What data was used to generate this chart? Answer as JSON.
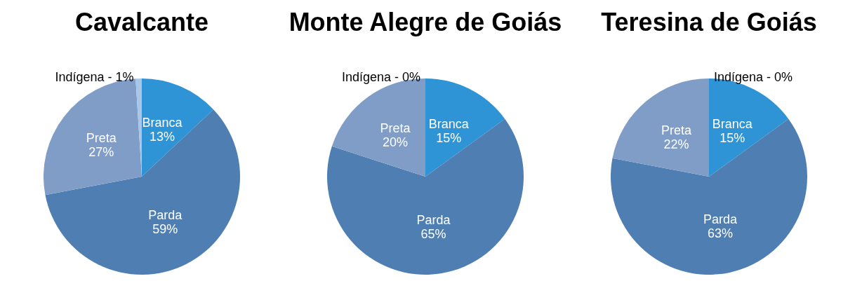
{
  "chart_data": [
    {
      "type": "pie",
      "title": "Cavalcante",
      "categories": [
        "Branca",
        "Parda",
        "Preta",
        "Indígena"
      ],
      "values": [
        13,
        59,
        27,
        1
      ],
      "value_labels": [
        "13%",
        "59%",
        "27%",
        "1%"
      ],
      "colors": [
        "#2e94d6",
        "#4f7fb2",
        "#7f9dc6",
        "#a9c6e8"
      ],
      "legend": false
    },
    {
      "type": "pie",
      "title": "Monte Alegre de Goiás",
      "categories": [
        "Branca",
        "Parda",
        "Preta",
        "Indígena"
      ],
      "values": [
        15,
        65,
        20,
        0
      ],
      "value_labels": [
        "15%",
        "65%",
        "20%",
        "- 0%"
      ],
      "colors": [
        "#2e94d6",
        "#4f7fb2",
        "#7f9dc6",
        "#a9c6e8"
      ],
      "legend": false
    },
    {
      "type": "pie",
      "title": "Teresina de Goiás",
      "categories": [
        "Branca",
        "Parda",
        "Preta",
        "Indígena"
      ],
      "values": [
        15,
        63,
        22,
        0
      ],
      "value_labels": [
        "15%",
        "63%",
        "22%",
        "- 0%"
      ],
      "colors": [
        "#2e94d6",
        "#4f7fb2",
        "#7f9dc6",
        "#a9c6e8"
      ],
      "legend": false
    }
  ]
}
